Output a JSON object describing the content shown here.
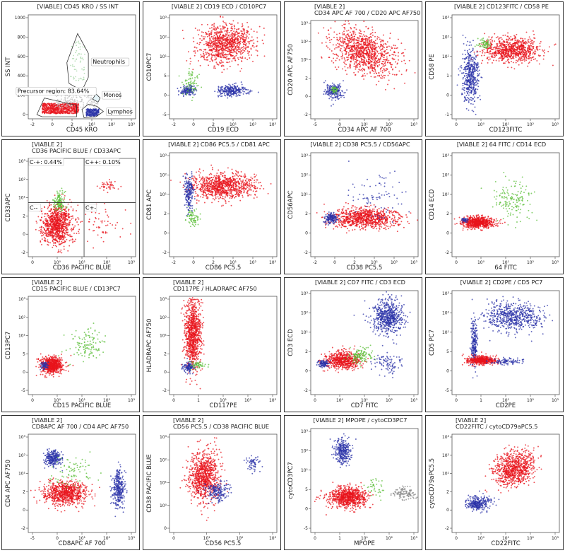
{
  "chart_data": [
    {
      "type": "scatter",
      "title_lines": [
        "[VIABLE] CD45 KRO / SS INT"
      ],
      "xlabel": "CD45 KRO",
      "ylabel": "SS INT",
      "xscale": "logicle",
      "yscale": "linear",
      "xticks": [
        "-2",
        "0",
        "2",
        "10¹",
        "10²",
        "10³"
      ],
      "yticks": [
        "0",
        "200",
        "400",
        "600",
        "800",
        "1000"
      ],
      "ylim": [
        0,
        1000
      ],
      "gates": [
        {
          "name": "Neutrophils",
          "label": "Neutrophils"
        },
        {
          "name": "Monos",
          "label": "Monos"
        },
        {
          "name": "Lymphos",
          "label": "Lymphos"
        },
        {
          "name": "Precursor region",
          "label": "Precursor region: 83.64%",
          "percent": 83.64
        }
      ],
      "populations": [
        {
          "color": "#e8141c",
          "label": "precursor",
          "x": [
            0,
            12
          ],
          "y": [
            30,
            190
          ]
        },
        {
          "color": "#2b33a8",
          "label": "lymphos",
          "x": [
            18,
            60
          ],
          "y": [
            20,
            110
          ]
        },
        {
          "color": "#7fc77f",
          "label": "neutrophils",
          "x": [
            5,
            35
          ],
          "y": [
            300,
            820
          ]
        }
      ]
    },
    {
      "type": "scatter",
      "title_lines": [
        "[VIABLE 2] CD19 ECD / CD10PC7"
      ],
      "xlabel": "CD19 ECD",
      "ylabel": "CD10PC7",
      "xticks": [
        "-2",
        "0",
        "2",
        "10¹",
        "10²",
        "10³"
      ],
      "yticks": [
        "-5",
        "0",
        "5",
        "10¹",
        "10²",
        "10³"
      ]
    },
    {
      "type": "scatter",
      "title_lines": [
        "[VIABLE 2]",
        "CD34 APC AF 700 / CD20 APC AF750"
      ],
      "xlabel": "CD34 APC AF 700",
      "ylabel": "CD20 APC AF750",
      "xticks": [
        "-5",
        "0",
        "10¹",
        "10²",
        "10³"
      ],
      "yticks": [
        "-2",
        "0",
        "2",
        "10¹",
        "10²",
        "10³"
      ]
    },
    {
      "type": "scatter",
      "title_lines": [
        "[VIABLE 2] CD123FITC / CD58 PE"
      ],
      "xlabel": "CD123FITC",
      "ylabel": "CD58 PE",
      "xticks": [
        "0",
        "10⁰",
        "10¹",
        "10²",
        "10³"
      ],
      "yticks": [
        "-1",
        "0",
        "1",
        "10¹",
        "10²",
        "10³"
      ]
    },
    {
      "type": "scatter",
      "title_lines": [
        "[VIABLE 2]",
        "CD36 PACIFIC BLUE / CD33APC"
      ],
      "xlabel": "CD36 PACIFIC BLUE",
      "ylabel": "CD33APC",
      "xticks": [
        "0",
        "10⁰",
        "10¹",
        "10²",
        "10³"
      ],
      "yticks": [
        "-2",
        "0",
        "2",
        "10¹",
        "10²",
        "10³"
      ],
      "quadrants": [
        {
          "label": "C-+: 0.44%",
          "percent": 0.44
        },
        {
          "label": "C++: 0.10%",
          "percent": 0.1
        },
        {
          "label": "C--"
        },
        {
          "label": "C+-"
        }
      ]
    },
    {
      "type": "scatter",
      "title_lines": [
        "[VIABLE 2] CD86 PC5.5 / CD81 APC"
      ],
      "xlabel": "CD86 PC5.5",
      "ylabel": "CD81 APC",
      "xticks": [
        "-2",
        "0",
        "2",
        "10¹",
        "10²",
        "10³"
      ],
      "yticks": [
        "-2",
        "0",
        "2",
        "10¹",
        "10²",
        "10³"
      ]
    },
    {
      "type": "scatter",
      "title_lines": [
        "[VIABLE 2] CD38 PC5.5 / CD56APC"
      ],
      "xlabel": "CD38 PC5.5",
      "ylabel": "CD56APC",
      "xticks": [
        "-2",
        "0",
        "2",
        "10¹",
        "10²",
        "10³"
      ],
      "yticks": [
        "-2",
        "0",
        "2",
        "10¹",
        "10²",
        "10³"
      ]
    },
    {
      "type": "scatter",
      "title_lines": [
        "[VIABLE 2] 64 FITC / CD14 ECD"
      ],
      "xlabel": "64 FITC",
      "ylabel": "CD14 ECD",
      "xticks": [
        "0",
        "10⁰",
        "10¹",
        "10²",
        "10³"
      ],
      "yticks": [
        "-2",
        "0",
        "2",
        "10¹",
        "10²",
        "10³"
      ]
    },
    {
      "type": "scatter",
      "title_lines": [
        "[VIABLE 2]",
        "CD15 PACIFIC BLUE / CD13PC7"
      ],
      "xlabel": "CD15 PACIFIC BLUE",
      "ylabel": "CD13PC7",
      "xticks": [
        "0",
        "10⁰",
        "10¹",
        "10²",
        "10³"
      ],
      "yticks": [
        "-5",
        "0",
        "5",
        "10¹",
        "10²",
        "10³"
      ]
    },
    {
      "type": "scatter",
      "title_lines": [
        "[VIABLE 2]",
        "CD117PE / HLADRAPC AF750"
      ],
      "xlabel": "CD117PE",
      "ylabel": "HLADRAPC AF750",
      "xticks": [
        "0",
        "1",
        "10¹",
        "10²",
        "10³"
      ],
      "yticks": [
        "-2",
        "0",
        "2",
        "10¹",
        "10²",
        "10³"
      ]
    },
    {
      "type": "scatter",
      "title_lines": [
        "[VIABLE 2] CD7 FITC / CD3 ECD"
      ],
      "xlabel": "CD7 FITC",
      "ylabel": "CD3 ECD",
      "xticks": [
        "0",
        "10⁰",
        "10¹",
        "10²",
        "10³"
      ],
      "yticks": [
        "-2",
        "0",
        "2",
        "10¹",
        "10²",
        "10³"
      ]
    },
    {
      "type": "scatter",
      "title_lines": [
        "[VIABLE 2] CD2PE / CD5 PC7"
      ],
      "xlabel": "CD2PE",
      "ylabel": "CD5 PC7",
      "xticks": [
        "0",
        "1",
        "10¹",
        "10²",
        "10³"
      ],
      "yticks": [
        "-5",
        "0",
        "5",
        "10¹",
        "10²",
        "10³"
      ]
    },
    {
      "type": "scatter",
      "title_lines": [
        "[VIABLE 2]",
        "CD8APC AF 700 / CD4 APC AF750"
      ],
      "xlabel": "CD8APC AF 700",
      "ylabel": "CD4 APC AF750",
      "xticks": [
        "-5",
        "0",
        "10¹",
        "10²",
        "10³"
      ],
      "yticks": [
        "-2",
        "0",
        "2",
        "10¹",
        "10²",
        "10³"
      ]
    },
    {
      "type": "scatter",
      "title_lines": [
        "[VIABLE 2]",
        "CD56 PC5.5 / CD38 PACIFIC BLUE"
      ],
      "xlabel": "CD56 PC5.5",
      "ylabel": "CD38 PACIFIC BLUE",
      "xticks": [
        "0",
        "10¹",
        "10²",
        "10³"
      ],
      "yticks": [
        "0",
        "10⁰",
        "10¹",
        "10²",
        "10³"
      ]
    },
    {
      "type": "scatter",
      "title_lines": [
        "[VIABLE 2] MPOPE / cytoCD3PC7"
      ],
      "xlabel": "MPOPE",
      "ylabel": "cytoCD3PC7",
      "xticks": [
        "0",
        "1",
        "10¹",
        "10²",
        "10³"
      ],
      "yticks": [
        "-5",
        "0",
        "5",
        "10¹",
        "10²",
        "10³"
      ]
    },
    {
      "type": "scatter",
      "title_lines": [
        "[VIABLE 2]",
        "CD22FITC / cytoCD79aPC5.5"
      ],
      "xlabel": "CD22FITC",
      "ylabel": "cytoCD79aPC5.5",
      "xticks": [
        "0",
        "10⁰",
        "10¹",
        "10²",
        "10³"
      ],
      "yticks": [
        "-2",
        "0",
        "2",
        "10¹",
        "10²",
        "10³"
      ]
    }
  ],
  "colors": {
    "red": "#e8141c",
    "blue": "#2b33a8",
    "green": "#5cbf3a",
    "grey": "#8a8a8a"
  }
}
